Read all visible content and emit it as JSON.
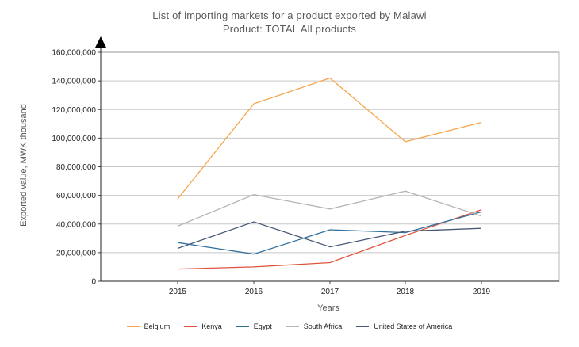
{
  "chart_data": {
    "type": "line",
    "title": "List of importing markets for a product exported by Malawi",
    "subtitle": "Product: TOTAL All products",
    "xlabel": "Years",
    "ylabel": "Exported value, MWK thousand",
    "x": [
      "2015",
      "2016",
      "2017",
      "2018",
      "2019"
    ],
    "ylim": [
      0,
      160000000
    ],
    "yticks": [
      "0",
      "20,000,000",
      "40,000,000",
      "60,000,000",
      "80,000,000",
      "100,000,000",
      "120,000,000",
      "140,000,000",
      "160,000,000"
    ],
    "grid": true,
    "legend_position": "bottom",
    "series": [
      {
        "name": "Belgium",
        "color": "#f5a54a",
        "values": [
          57500000,
          124000000,
          142000000,
          97500000,
          111000000
        ]
      },
      {
        "name": "Kenya",
        "color": "#e0533c",
        "values": [
          8500000,
          10000000,
          13000000,
          32000000,
          50000000
        ]
      },
      {
        "name": "Egypt",
        "color": "#2e6f9e",
        "values": [
          27000000,
          19000000,
          36000000,
          34000000,
          48500000
        ]
      },
      {
        "name": "South Africa",
        "color": "#b5b5b5",
        "values": [
          38500000,
          60500000,
          50500000,
          63000000,
          45500000
        ]
      },
      {
        "name": "United States of America",
        "color": "#4a5a78",
        "values": [
          23000000,
          41500000,
          24000000,
          35000000,
          37000000
        ]
      }
    ]
  }
}
